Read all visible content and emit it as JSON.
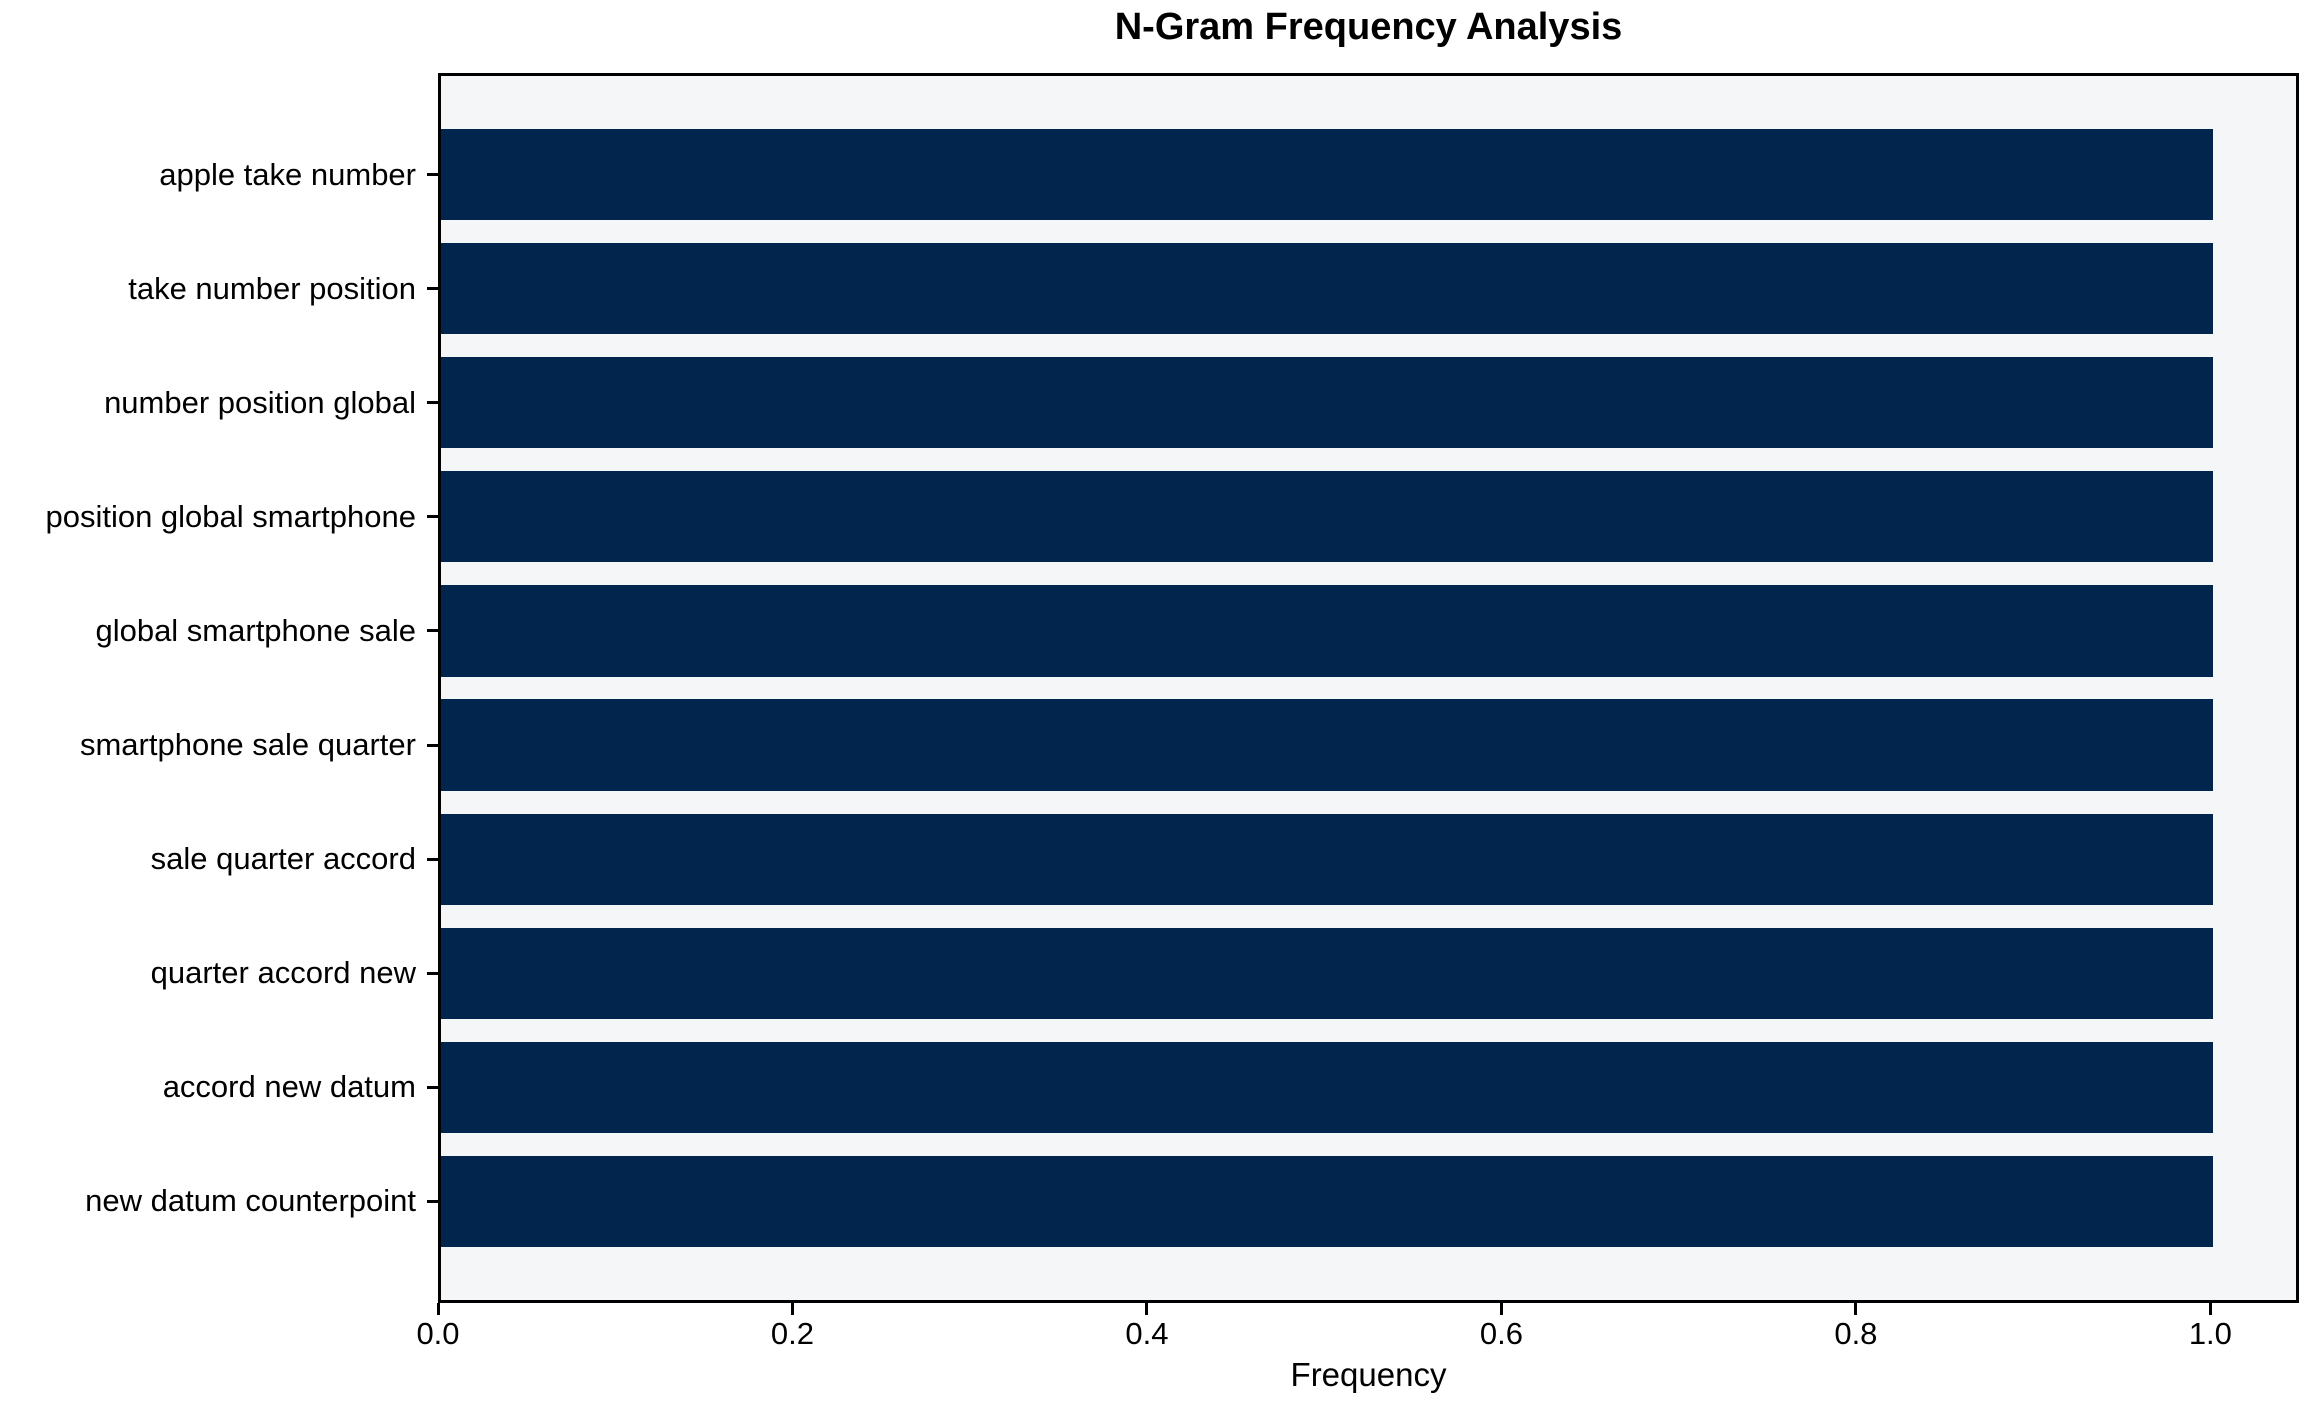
{
  "chart_data": {
    "type": "bar",
    "orientation": "horizontal",
    "title": "N-Gram Frequency Analysis",
    "xlabel": "Frequency",
    "ylabel": "",
    "categories": [
      "apple take number",
      "take number position",
      "number position global",
      "position global smartphone",
      "global smartphone sale",
      "smartphone sale quarter",
      "sale quarter accord",
      "quarter accord new",
      "accord new datum",
      "new datum counterpoint"
    ],
    "values": [
      1.0,
      1.0,
      1.0,
      1.0,
      1.0,
      1.0,
      1.0,
      1.0,
      1.0,
      1.0
    ],
    "x_ticks": [
      {
        "value": 0.0,
        "label": "0.0"
      },
      {
        "value": 0.2,
        "label": "0.2"
      },
      {
        "value": 0.4,
        "label": "0.4"
      },
      {
        "value": 0.6,
        "label": "0.6"
      },
      {
        "value": 0.8,
        "label": "0.8"
      },
      {
        "value": 1.0,
        "label": "1.0"
      }
    ],
    "xlim": [
      0,
      1.05
    ],
    "grid": false,
    "legend_position": "none",
    "colors": {
      "bar": "#02254e",
      "plot_background": "#f5f6f7",
      "figure_background": "#ffffff",
      "axis": "#000000",
      "text": "#000000"
    }
  }
}
